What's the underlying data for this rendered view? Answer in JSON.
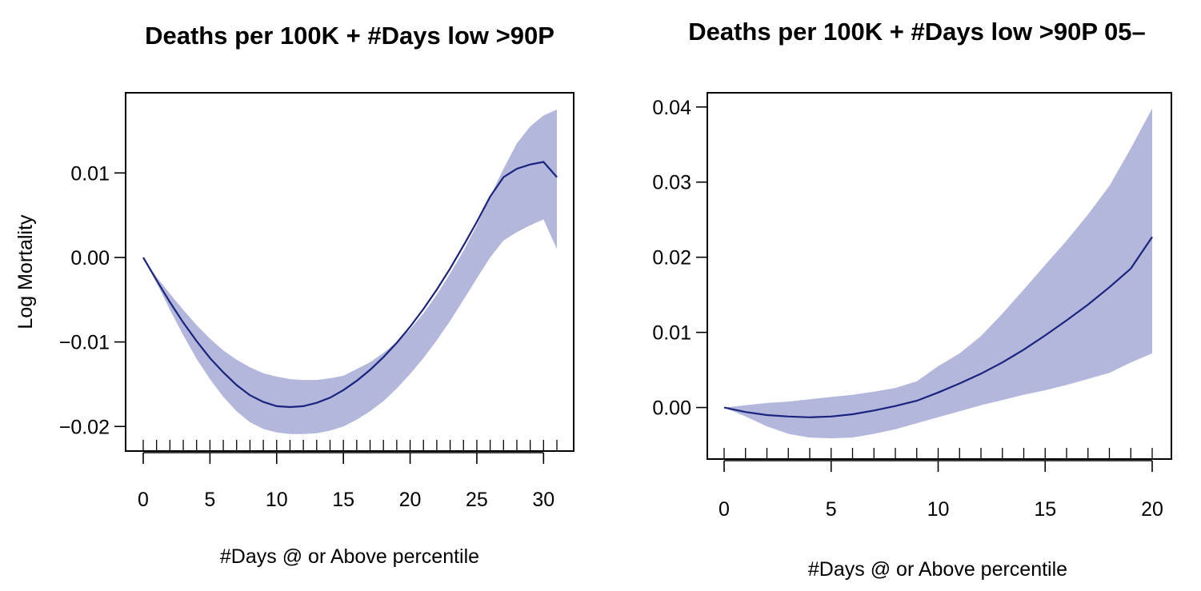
{
  "colors": {
    "band": "#b3b7db",
    "line": "#1a237e"
  },
  "chart_data": [
    {
      "type": "area",
      "title": "Deaths per 100K + #Days low >90P",
      "xlabel": "#Days @ or Above percentile",
      "ylabel": "Log Mortality",
      "xlim": [
        0,
        31
      ],
      "ylim": [
        -0.0213,
        0.0175
      ],
      "x_ticks": [
        0,
        5,
        10,
        15,
        20,
        25,
        30
      ],
      "x_tick_labels": [
        "0",
        "5",
        "10",
        "15",
        "20",
        "25",
        "30"
      ],
      "y_ticks": [
        -0.02,
        -0.01,
        0.0,
        0.01
      ],
      "y_tick_labels": [
        "−0.02",
        "−0.01",
        "0.00",
        "0.01"
      ],
      "rug": [
        0,
        1,
        2,
        3,
        4,
        5,
        6,
        7,
        8,
        9,
        10,
        11,
        12,
        13,
        14,
        15,
        16,
        17,
        18,
        19,
        20,
        21,
        22,
        23,
        24,
        25,
        26,
        27,
        28,
        29,
        30,
        31
      ],
      "series": [
        {
          "x": [
            0,
            1,
            2,
            3,
            4,
            5,
            6,
            7,
            8,
            9,
            10,
            11,
            12,
            13,
            14,
            15,
            16,
            17,
            18,
            19,
            20,
            21,
            22,
            23,
            24,
            25,
            26,
            27,
            28,
            29,
            30,
            31
          ],
          "y": [
            0.0,
            -0.0027,
            -0.0053,
            -0.0077,
            -0.0099,
            -0.0119,
            -0.0136,
            -0.0151,
            -0.0163,
            -0.0171,
            -0.0176,
            -0.0177,
            -0.0176,
            -0.0172,
            -0.0166,
            -0.0157,
            -0.0146,
            -0.0133,
            -0.0118,
            -0.0101,
            -0.0082,
            -0.0061,
            -0.0038,
            -0.0013,
            0.0014,
            0.0042,
            0.0072,
            0.0095,
            0.0105,
            0.011,
            0.0113,
            0.0095
          ],
          "lower": [
            0.0,
            -0.003,
            -0.0062,
            -0.0092,
            -0.012,
            -0.0144,
            -0.0165,
            -0.0182,
            -0.0195,
            -0.0203,
            -0.0207,
            -0.0209,
            -0.0209,
            -0.0208,
            -0.0205,
            -0.02,
            -0.0192,
            -0.0182,
            -0.017,
            -0.0155,
            -0.0138,
            -0.0119,
            -0.0098,
            -0.0075,
            -0.005,
            -0.0025,
            0.0,
            0.002,
            0.003,
            0.0038,
            0.0045,
            0.001
          ],
          "upper": [
            0.0,
            -0.0023,
            -0.0043,
            -0.0062,
            -0.008,
            -0.0096,
            -0.011,
            -0.0121,
            -0.013,
            -0.0137,
            -0.0141,
            -0.0144,
            -0.0145,
            -0.0145,
            -0.0143,
            -0.014,
            -0.0132,
            -0.0124,
            -0.0113,
            -0.01,
            -0.0085,
            -0.0066,
            -0.0044,
            -0.0019,
            0.0008,
            0.0038,
            0.0072,
            0.0105,
            0.0135,
            0.0155,
            0.0168,
            0.0175
          ]
        }
      ]
    },
    {
      "type": "area",
      "title": "Deaths per 100K + #Days low >90P 05–",
      "xlabel": "#Days @ or Above percentile",
      "ylabel": "",
      "xlim": [
        0,
        20
      ],
      "ylim": [
        -0.0059,
        0.0404
      ],
      "x_ticks": [
        0,
        5,
        10,
        15,
        20
      ],
      "x_tick_labels": [
        "0",
        "5",
        "10",
        "15",
        "20"
      ],
      "y_ticks": [
        0.0,
        0.01,
        0.02,
        0.03,
        0.04
      ],
      "y_tick_labels": [
        "0.00",
        "0.01",
        "0.02",
        "0.03",
        "0.04"
      ],
      "rug": [
        0,
        1,
        2,
        3,
        4,
        5,
        6,
        7,
        8,
        9,
        10,
        11,
        12,
        13,
        14,
        15,
        16,
        17,
        18,
        19,
        20
      ],
      "series": [
        {
          "x": [
            0,
            1,
            2,
            3,
            4,
            5,
            6,
            7,
            8,
            9,
            10,
            11,
            12,
            13,
            14,
            15,
            16,
            17,
            18,
            19,
            20
          ],
          "y": [
            0.0,
            -0.0006,
            -0.001,
            -0.0012,
            -0.0013,
            -0.0012,
            -0.0009,
            -0.0004,
            0.0002,
            0.0009,
            0.002,
            0.0032,
            0.0045,
            0.006,
            0.0077,
            0.0096,
            0.0116,
            0.0137,
            0.016,
            0.0185,
            0.0227
          ],
          "lower": [
            0.0,
            -0.0012,
            -0.0025,
            -0.0035,
            -0.004,
            -0.0041,
            -0.004,
            -0.0035,
            -0.0029,
            -0.0021,
            -0.0013,
            -0.0005,
            0.0003,
            0.001,
            0.0017,
            0.0023,
            0.003,
            0.0038,
            0.0046,
            0.006,
            0.0072
          ],
          "upper": [
            0.0,
            0.0003,
            0.0006,
            0.0008,
            0.0011,
            0.0014,
            0.0017,
            0.0021,
            0.0026,
            0.0035,
            0.0055,
            0.0072,
            0.0095,
            0.0125,
            0.0157,
            0.019,
            0.0222,
            0.0257,
            0.0295,
            0.0345,
            0.0398
          ]
        }
      ]
    }
  ]
}
